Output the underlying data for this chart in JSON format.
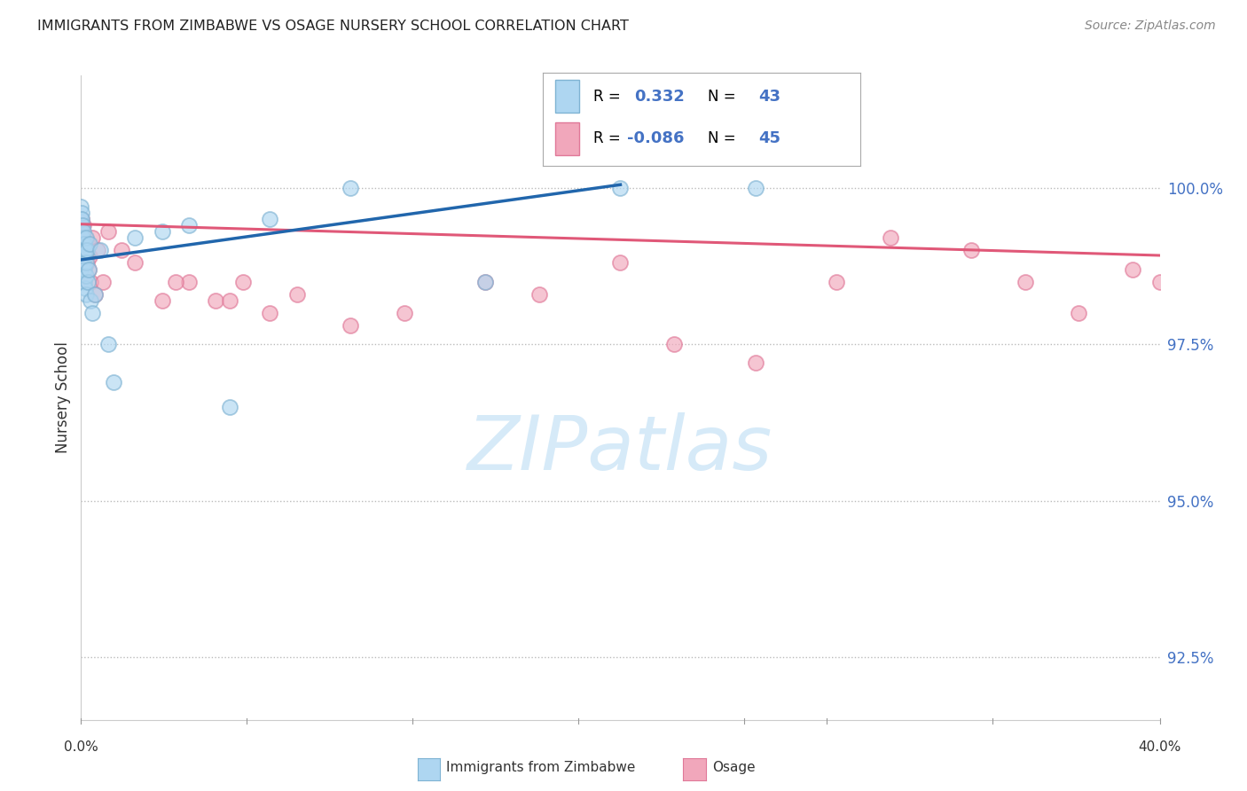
{
  "title": "IMMIGRANTS FROM ZIMBABWE VS OSAGE NURSERY SCHOOL CORRELATION CHART",
  "source": "Source: ZipAtlas.com",
  "ylabel": "Nursery School",
  "y_ticks": [
    92.5,
    95.0,
    97.5,
    100.0
  ],
  "y_tick_labels": [
    "92.5%",
    "95.0%",
    "97.5%",
    "100.0%"
  ],
  "x_range": [
    0.0,
    40.0
  ],
  "y_range": [
    91.5,
    101.8
  ],
  "blue_label": "Immigrants from Zimbabwe",
  "pink_label": "Osage",
  "blue_R": 0.332,
  "blue_N": 43,
  "pink_R": -0.086,
  "pink_N": 45,
  "blue_line_color": "#2166ac",
  "pink_line_color": "#e05878",
  "blue_marker_facecolor": "#aed6f1",
  "blue_marker_edgecolor": "#7fb3d3",
  "pink_marker_facecolor": "#f1a7bb",
  "pink_marker_edgecolor": "#e07898",
  "watermark_text": "ZIPatlas",
  "watermark_color": "#d6eaf8",
  "background_color": "#ffffff",
  "grid_color": "#bbbbbb",
  "blue_scatter_x": [
    0.0,
    0.0,
    0.0,
    0.0,
    0.0,
    0.02,
    0.03,
    0.04,
    0.05,
    0.06,
    0.07,
    0.08,
    0.09,
    0.1,
    0.11,
    0.12,
    0.13,
    0.14,
    0.15,
    0.16,
    0.17,
    0.18,
    0.19,
    0.2,
    0.22,
    0.25,
    0.28,
    0.3,
    0.35,
    0.4,
    0.5,
    0.7,
    1.0,
    1.2,
    2.0,
    3.0,
    4.0,
    5.5,
    7.0,
    10.0,
    15.0,
    20.0,
    25.0
  ],
  "blue_scatter_y": [
    99.7,
    99.5,
    99.3,
    99.0,
    98.7,
    99.6,
    99.5,
    99.4,
    99.2,
    99.1,
    98.9,
    98.8,
    99.0,
    99.3,
    98.5,
    99.1,
    98.7,
    98.9,
    99.0,
    98.4,
    98.6,
    98.3,
    99.2,
    98.8,
    99.0,
    98.5,
    98.7,
    99.1,
    98.2,
    98.0,
    98.3,
    99.0,
    97.5,
    96.9,
    99.2,
    99.3,
    99.4,
    96.5,
    99.5,
    100.0,
    98.5,
    100.0,
    100.0
  ],
  "pink_scatter_x": [
    0.0,
    0.02,
    0.04,
    0.06,
    0.08,
    0.1,
    0.12,
    0.14,
    0.16,
    0.18,
    0.2,
    0.22,
    0.25,
    0.28,
    0.32,
    0.36,
    0.4,
    0.5,
    0.6,
    0.8,
    1.0,
    1.5,
    2.0,
    3.0,
    4.0,
    5.0,
    6.0,
    7.0,
    8.0,
    10.0,
    12.0,
    15.0,
    17.0,
    20.0,
    22.0,
    25.0,
    28.0,
    30.0,
    33.0,
    35.0,
    37.0,
    39.0,
    40.0,
    3.5,
    5.5
  ],
  "pink_scatter_y": [
    99.4,
    99.5,
    99.3,
    99.2,
    99.0,
    99.4,
    99.1,
    99.2,
    99.0,
    98.9,
    99.0,
    98.8,
    99.1,
    98.7,
    98.9,
    98.5,
    99.2,
    98.3,
    99.0,
    98.5,
    99.3,
    99.0,
    98.8,
    98.2,
    98.5,
    98.2,
    98.5,
    98.0,
    98.3,
    97.8,
    98.0,
    98.5,
    98.3,
    98.8,
    97.5,
    97.2,
    98.5,
    99.2,
    99.0,
    98.5,
    98.0,
    98.7,
    98.5,
    98.5,
    98.2
  ]
}
